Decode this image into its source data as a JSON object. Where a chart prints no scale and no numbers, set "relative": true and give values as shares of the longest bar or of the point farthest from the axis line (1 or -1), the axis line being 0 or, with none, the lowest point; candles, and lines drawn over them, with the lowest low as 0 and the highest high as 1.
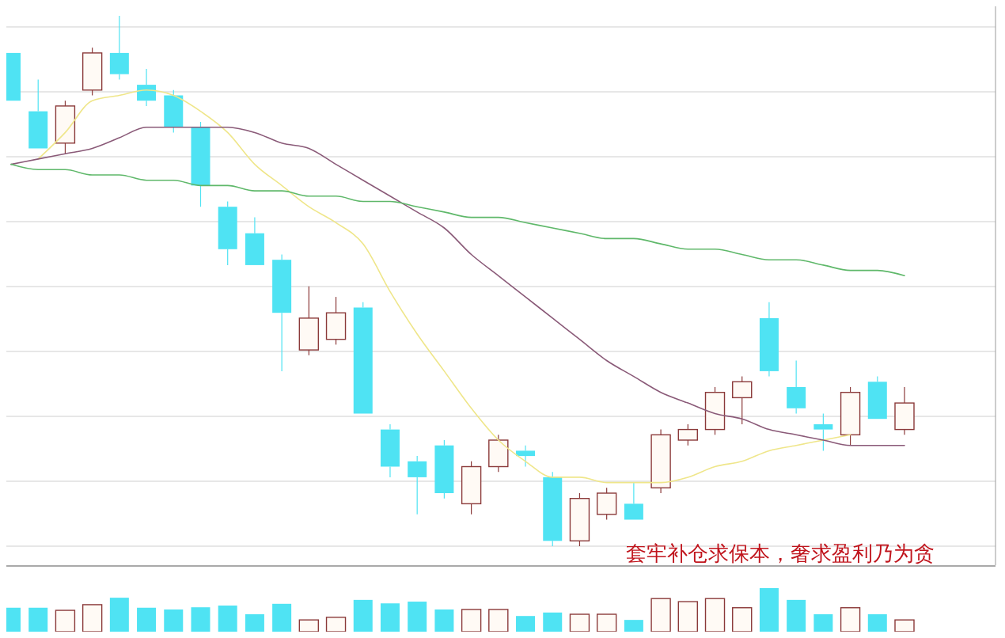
{
  "chart_data": [
    {
      "type": "candlestick",
      "relative": true,
      "grid": true,
      "categories": [
        null,
        null,
        null,
        null,
        null,
        null,
        null,
        null,
        null,
        null,
        null,
        null,
        null,
        null,
        null,
        null,
        null,
        null,
        null,
        null,
        null,
        null,
        null,
        null,
        null,
        null,
        null,
        null,
        null,
        null,
        null,
        null,
        null,
        null
      ],
      "ohlc": [
        [
          0.93,
          0.93,
          0.84,
          0.84
        ],
        [
          0.82,
          0.88,
          0.75,
          0.75
        ],
        [
          0.76,
          0.84,
          0.74,
          0.83
        ],
        [
          0.86,
          0.94,
          0.85,
          0.93
        ],
        [
          0.93,
          1,
          0.88,
          0.89
        ],
        [
          0.87,
          0.9,
          0.83,
          0.84
        ],
        [
          0.85,
          0.86,
          0.78,
          0.79
        ],
        [
          0.79,
          0.8,
          0.64,
          0.68
        ],
        [
          0.64,
          0.65,
          0.53,
          0.56
        ],
        [
          0.59,
          0.62,
          0.53,
          0.53
        ],
        [
          0.54,
          0.55,
          0.33,
          0.44
        ],
        [
          0.37,
          0.49,
          0.36,
          0.43
        ],
        [
          0.39,
          0.47,
          0.38,
          0.44
        ],
        [
          0.45,
          0.46,
          0.25,
          0.25
        ],
        [
          0.22,
          0.23,
          0.13,
          0.15
        ],
        [
          0.16,
          0.17,
          0.06,
          0.13
        ],
        [
          0.19,
          0.2,
          0.09,
          0.1
        ],
        [
          0.08,
          0.16,
          0.06,
          0.15
        ],
        [
          0.15,
          0.21,
          0.14,
          0.2
        ],
        [
          0.18,
          0.19,
          0.15,
          0.17
        ],
        [
          0.13,
          0.14,
          0,
          0.01
        ],
        [
          0.01,
          0.1,
          0,
          0.09
        ],
        [
          0.06,
          0.11,
          0.05,
          0.1
        ],
        [
          0.08,
          0.12,
          0.05,
          0.05
        ],
        [
          0.11,
          0.22,
          0.1,
          0.21
        ],
        [
          0.2,
          0.23,
          0.19,
          0.22
        ],
        [
          0.22,
          0.3,
          0.21,
          0.29
        ],
        [
          0.28,
          0.32,
          0.23,
          0.31
        ],
        [
          0.43,
          0.46,
          0.32,
          0.33
        ],
        [
          0.3,
          0.35,
          0.25,
          0.26
        ],
        [
          0.23,
          0.25,
          0.18,
          0.22
        ],
        [
          0.21,
          0.3,
          0.19,
          0.29
        ],
        [
          0.31,
          0.32,
          0.24,
          0.24
        ],
        [
          0.22,
          0.3,
          0.21,
          0.27
        ]
      ],
      "colors": [
        "#4fe3f3",
        "#4fe3f3",
        "#8b3a3a",
        "#8b3a3a",
        "#4fe3f3",
        "#4fe3f3",
        "#4fe3f3",
        "#4fe3f3",
        "#4fe3f3",
        "#4fe3f3",
        "#4fe3f3",
        "#8b3a3a",
        "#8b3a3a",
        "#4fe3f3",
        "#4fe3f3",
        "#4fe3f3",
        "#4fe3f3",
        "#8b3a3a",
        "#8b3a3a",
        "#4fe3f3",
        "#4fe3f3",
        "#8b3a3a",
        "#8b3a3a",
        "#4fe3f3",
        "#8b3a3a",
        "#8b3a3a",
        "#8b3a3a",
        "#8b3a3a",
        "#4fe3f3",
        "#4fe3f3",
        "#4fe3f3",
        "#8b3a3a",
        "#4fe3f3",
        "#8b3a3a"
      ],
      "series": [
        {
          "type": "line",
          "color": "#efe68a",
          "values": [
            null,
            0.73,
            0.78,
            0.84,
            0.85,
            0.86,
            0.85,
            0.82,
            0.78,
            0.72,
            0.68,
            0.64,
            0.61,
            0.57,
            0.48,
            0.4,
            0.33,
            0.26,
            0.2,
            0.16,
            0.13,
            0.13,
            0.12,
            0.12,
            0.12,
            0.13,
            0.15,
            0.16,
            0.18,
            0.19,
            0.2,
            0.21,
            null,
            null
          ]
        },
        {
          "type": "line",
          "color": "#8a5a78",
          "values": [
            0.72,
            0.73,
            0.74,
            0.75,
            0.77,
            0.79,
            0.79,
            0.79,
            0.79,
            0.78,
            0.76,
            0.75,
            0.72,
            0.69,
            0.66,
            0.63,
            0.6,
            0.55,
            0.51,
            0.47,
            0.43,
            0.39,
            0.35,
            0.32,
            0.29,
            0.27,
            0.25,
            0.24,
            0.22,
            0.21,
            0.2,
            0.19,
            0.19,
            0.19
          ]
        },
        {
          "type": "line",
          "color": "#5fb86a",
          "values": [
            0.72,
            0.71,
            0.71,
            0.7,
            0.7,
            0.69,
            0.69,
            0.68,
            0.68,
            0.67,
            0.67,
            0.66,
            0.66,
            0.65,
            0.65,
            0.64,
            0.63,
            0.62,
            0.62,
            0.61,
            0.6,
            0.59,
            0.58,
            0.58,
            0.57,
            0.56,
            0.56,
            0.55,
            0.54,
            0.54,
            0.53,
            0.52,
            0.52,
            0.51
          ]
        }
      ],
      "annotations": [
        "套牢补仓求保本，奢求盈利乃为贪"
      ]
    },
    {
      "type": "bar",
      "relative": true,
      "categories": [
        null,
        null,
        null,
        null,
        null,
        null,
        null,
        null,
        null,
        null,
        null,
        null,
        null,
        null,
        null,
        null,
        null,
        null,
        null,
        null,
        null,
        null,
        null,
        null,
        null,
        null,
        null,
        null,
        null,
        null,
        null,
        null,
        null,
        null
      ],
      "values": [
        0.55,
        0.55,
        0.49,
        0.62,
        0.78,
        0.55,
        0.51,
        0.56,
        0.6,
        0.4,
        0.64,
        0.27,
        0.33,
        0.73,
        0.65,
        0.69,
        0.51,
        0.51,
        0.51,
        0.36,
        0.44,
        0.4,
        0.4,
        0.27,
        0.76,
        0.69,
        0.76,
        0.55,
        1,
        0.73,
        0.4,
        0.55,
        0.4,
        0.27
      ],
      "colors": [
        "#4fe3f3",
        "#4fe3f3",
        "#8b3a3a",
        "#8b3a3a",
        "#4fe3f3",
        "#4fe3f3",
        "#4fe3f3",
        "#4fe3f3",
        "#4fe3f3",
        "#4fe3f3",
        "#4fe3f3",
        "#8b3a3a",
        "#8b3a3a",
        "#4fe3f3",
        "#4fe3f3",
        "#4fe3f3",
        "#4fe3f3",
        "#8b3a3a",
        "#8b3a3a",
        "#4fe3f3",
        "#4fe3f3",
        "#8b3a3a",
        "#8b3a3a",
        "#4fe3f3",
        "#8b3a3a",
        "#8b3a3a",
        "#8b3a3a",
        "#8b3a3a",
        "#4fe3f3",
        "#4fe3f3",
        "#4fe3f3",
        "#8b3a3a",
        "#4fe3f3",
        "#8b3a3a"
      ]
    }
  ]
}
